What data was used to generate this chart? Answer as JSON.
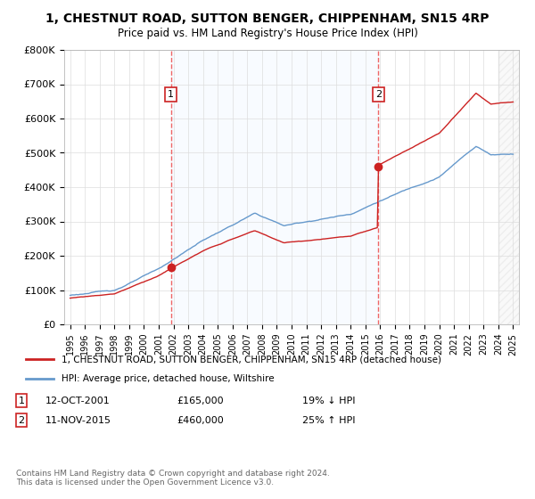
{
  "title": "1, CHESTNUT ROAD, SUTTON BENGER, CHIPPENHAM, SN15 4RP",
  "subtitle": "Price paid vs. HM Land Registry's House Price Index (HPI)",
  "legend_line1": "1, CHESTNUT ROAD, SUTTON BENGER, CHIPPENHAM, SN15 4RP (detached house)",
  "legend_line2": "HPI: Average price, detached house, Wiltshire",
  "transaction1_date": "12-OCT-2001",
  "transaction1_price": 165000,
  "transaction1_hpi": "19% ↓ HPI",
  "transaction2_date": "11-NOV-2015",
  "transaction2_price": 460000,
  "transaction2_hpi": "25% ↑ HPI",
  "footer": "Contains HM Land Registry data © Crown copyright and database right 2024.\nThis data is licensed under the Open Government Licence v3.0.",
  "ylim": [
    0,
    800000
  ],
  "yticks": [
    0,
    100000,
    200000,
    300000,
    400000,
    500000,
    600000,
    700000,
    800000
  ],
  "red_line_color": "#cc2222",
  "blue_line_color": "#6699cc",
  "vline_color": "#ee6666",
  "shade_color": "#ddeeff",
  "hatch_color": "#cccccc",
  "background_color": "#ffffff",
  "transaction1_x": 2001.83,
  "transaction2_x": 2015.87,
  "xmin": 1995,
  "xmax": 2025
}
